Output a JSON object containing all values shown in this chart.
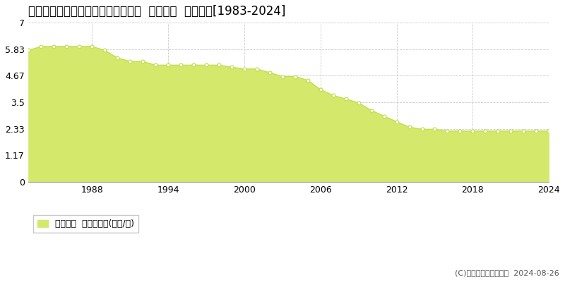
{
  "title": "北海道苫小牧市字勇払２８番１４外  地価公示  地価推移[1983-2024]",
  "years": [
    1983,
    1984,
    1985,
    1986,
    1987,
    1988,
    1989,
    1990,
    1991,
    1992,
    1993,
    1994,
    1995,
    1996,
    1997,
    1998,
    1999,
    2000,
    2001,
    2002,
    2003,
    2004,
    2005,
    2006,
    2007,
    2008,
    2009,
    2010,
    2011,
    2012,
    2013,
    2014,
    2015,
    2016,
    2017,
    2018,
    2019,
    2020,
    2021,
    2022,
    2023,
    2024
  ],
  "values": [
    5.78,
    5.95,
    5.95,
    5.95,
    5.95,
    5.95,
    5.78,
    5.45,
    5.29,
    5.29,
    5.13,
    5.13,
    5.13,
    5.13,
    5.13,
    5.13,
    5.04,
    4.96,
    4.96,
    4.8,
    4.63,
    4.63,
    4.46,
    4.05,
    3.8,
    3.64,
    3.47,
    3.14,
    2.89,
    2.64,
    2.4,
    2.31,
    2.31,
    2.23,
    2.23,
    2.23,
    2.23,
    2.23,
    2.23,
    2.23,
    2.23,
    2.23
  ],
  "ylim": [
    0,
    7
  ],
  "yticks": [
    0,
    1.17,
    2.33,
    3.5,
    4.67,
    5.83,
    7
  ],
  "ytick_labels": [
    "0",
    "1.17",
    "2.33",
    "3.5",
    "4.67",
    "5.83",
    "7"
  ],
  "xticks": [
    1988,
    1994,
    2000,
    2006,
    2012,
    2018,
    2024
  ],
  "xtick_labels": [
    "1988",
    "1994",
    "2000",
    "2006",
    "2012",
    "2018",
    "2024"
  ],
  "fill_color": "#d4e96b",
  "line_color": "#c8dc50",
  "marker_face_color": "#ffffff",
  "marker_edge_color": "#c8dc50",
  "bg_color": "#ffffff",
  "plot_bg_color": "#ffffff",
  "grid_color": "#cccccc",
  "legend_label": "地価公示  平均坪単価(万円/坪)",
  "copyright_text": "(C)土地価格ドットコム  2024-08-26",
  "title_fontsize": 12,
  "axis_fontsize": 9,
  "legend_fontsize": 9
}
